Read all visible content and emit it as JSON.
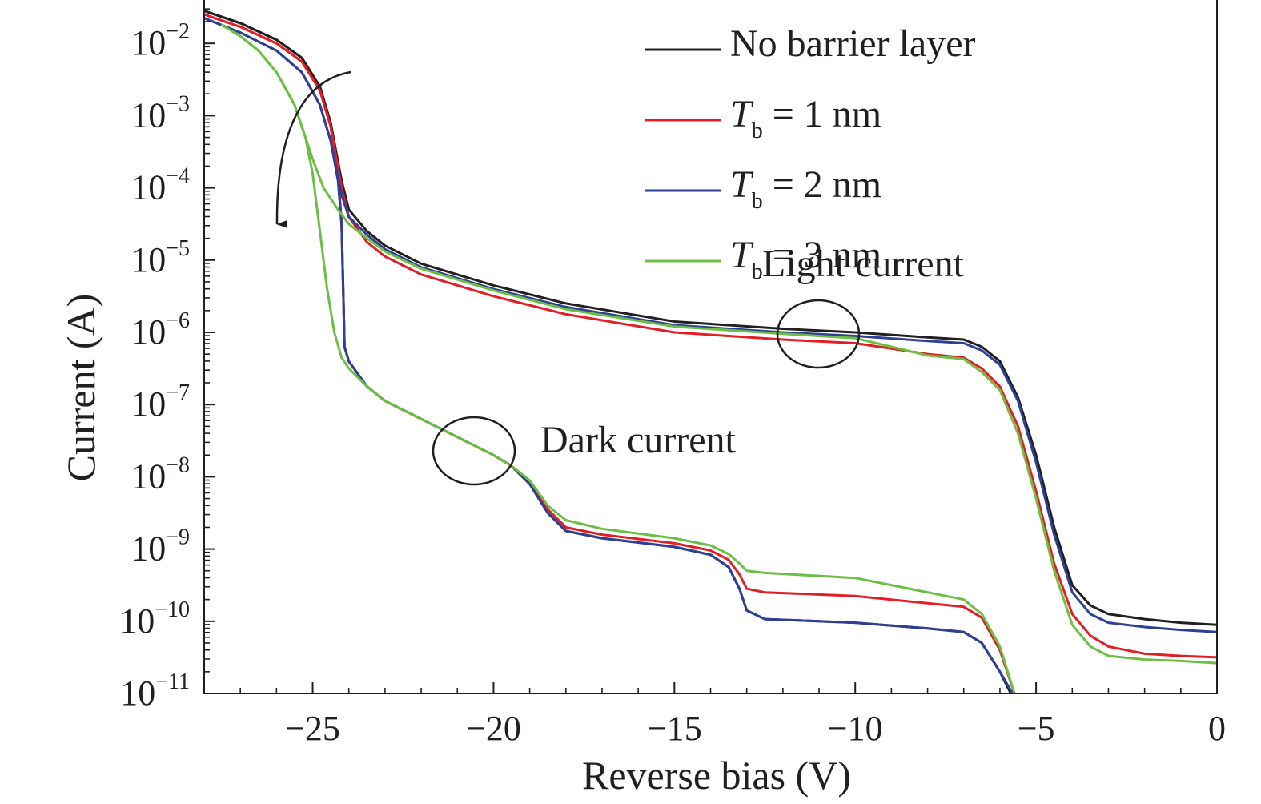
{
  "chart_data": {
    "type": "line",
    "xlabel": "Reverse bias (V)",
    "ylabel": "Current (A)",
    "xlim": [
      -28,
      0
    ],
    "ylim_exponent": [
      -11,
      -1.5
    ],
    "y_scale": "log",
    "x_ticks": [
      -25,
      -20,
      -15,
      -10,
      -5,
      0
    ],
    "x_tick_labels": [
      "−25",
      "−20",
      "−15",
      "−10",
      "−5",
      "0"
    ],
    "y_ticks": [
      {
        "base": "10",
        "exp": "−2",
        "value": -2
      },
      {
        "base": "10",
        "exp": "−3",
        "value": -3
      },
      {
        "base": "10",
        "exp": "−4",
        "value": -4
      },
      {
        "base": "10",
        "exp": "−5",
        "value": -5
      },
      {
        "base": "10",
        "exp": "−6",
        "value": -6
      },
      {
        "base": "10",
        "exp": "−7",
        "value": -7
      },
      {
        "base": "10",
        "exp": "−8",
        "value": -8
      },
      {
        "base": "10",
        "exp": "−9",
        "value": -9
      },
      {
        "base": "10",
        "exp": "−10",
        "value": -10
      },
      {
        "base": "10",
        "exp": "−11",
        "value": -11
      }
    ],
    "grid": false,
    "legend_position": "top-right",
    "legend": [
      {
        "key": "none",
        "text": "No barrier layer",
        "color": "#231f20"
      },
      {
        "key": "tb1",
        "italic": "T",
        "sub": "b",
        "rest": " = 1 nm",
        "color": "#e31e26"
      },
      {
        "key": "tb2",
        "italic": "T",
        "sub": "b",
        "rest": " = 2 nm",
        "color": "#2e3f96"
      },
      {
        "key": "tb3",
        "italic": "T",
        "sub": "b",
        "rest": " = 3 nm",
        "color": "#6cbf44"
      }
    ],
    "annotations": [
      {
        "text": "Light current",
        "x": -11,
        "y_exp": -6.0
      },
      {
        "text": "Dark current",
        "x": -20.5,
        "y_exp": -7.6
      }
    ],
    "series": [
      {
        "name": "No barrier layer",
        "color": "#231f20",
        "light": [
          [
            -28,
            -1.55
          ],
          [
            -27,
            -1.72
          ],
          [
            -26,
            -1.95
          ],
          [
            -25.3,
            -2.2
          ],
          [
            -24.8,
            -2.6
          ],
          [
            -24.5,
            -3.1
          ],
          [
            -24.2,
            -3.9
          ],
          [
            -24.0,
            -4.3
          ],
          [
            -23.5,
            -4.6
          ],
          [
            -23,
            -4.8
          ],
          [
            -22,
            -5.05
          ],
          [
            -20,
            -5.35
          ],
          [
            -18,
            -5.6
          ],
          [
            -15,
            -5.85
          ],
          [
            -12,
            -5.95
          ],
          [
            -10,
            -6.0
          ],
          [
            -8,
            -6.07
          ],
          [
            -7,
            -6.1
          ],
          [
            -6.5,
            -6.2
          ],
          [
            -6,
            -6.4
          ],
          [
            -5.5,
            -6.9
          ],
          [
            -5,
            -7.7
          ],
          [
            -4.5,
            -8.7
          ],
          [
            -4,
            -9.5
          ],
          [
            -3.5,
            -9.78
          ],
          [
            -3,
            -9.9
          ],
          [
            -2,
            -9.97
          ],
          [
            -1,
            -10.02
          ],
          [
            0,
            -10.05
          ]
        ],
        "dark": [
          [
            -28,
            -1.55
          ],
          [
            -27,
            -1.72
          ],
          [
            -26,
            -1.95
          ],
          [
            -25.3,
            -2.2
          ],
          [
            -24.8,
            -2.6
          ],
          [
            -24.5,
            -3.1
          ],
          [
            -24.3,
            -3.8
          ],
          [
            -24.2,
            -4.5
          ],
          [
            -24.15,
            -5.5
          ],
          [
            -24.12,
            -6.2
          ],
          [
            -24.0,
            -6.4
          ],
          [
            -23.5,
            -6.75
          ],
          [
            -23,
            -6.95
          ],
          [
            -22,
            -7.2
          ],
          [
            -21,
            -7.45
          ],
          [
            -20,
            -7.7
          ],
          [
            -19.5,
            -7.85
          ],
          [
            -19,
            -8.1
          ],
          [
            -18.5,
            -8.5
          ],
          [
            -18,
            -8.75
          ],
          [
            -17,
            -8.85
          ],
          [
            -15,
            -8.97
          ],
          [
            -14,
            -9.08
          ],
          [
            -13.5,
            -9.25
          ],
          [
            -13.2,
            -9.55
          ],
          [
            -13,
            -9.85
          ],
          [
            -12.5,
            -9.97
          ],
          [
            -10,
            -10.02
          ],
          [
            -8,
            -10.1
          ],
          [
            -7,
            -10.15
          ],
          [
            -6.5,
            -10.3
          ],
          [
            -6,
            -10.7
          ],
          [
            -5.7,
            -11.0
          ]
        ]
      },
      {
        "name": "Tb = 1 nm",
        "color": "#e31e26",
        "light": [
          [
            -28,
            -1.6
          ],
          [
            -27,
            -1.77
          ],
          [
            -26,
            -2.0
          ],
          [
            -25.3,
            -2.25
          ],
          [
            -24.8,
            -2.65
          ],
          [
            -24.5,
            -3.15
          ],
          [
            -24.2,
            -4.0
          ],
          [
            -24.0,
            -4.4
          ],
          [
            -23.5,
            -4.75
          ],
          [
            -23,
            -4.95
          ],
          [
            -22,
            -5.2
          ],
          [
            -20,
            -5.5
          ],
          [
            -18,
            -5.75
          ],
          [
            -15,
            -6.0
          ],
          [
            -12,
            -6.1
          ],
          [
            -10,
            -6.15
          ],
          [
            -8,
            -6.3
          ],
          [
            -7,
            -6.35
          ],
          [
            -6.5,
            -6.5
          ],
          [
            -6,
            -6.75
          ],
          [
            -5.5,
            -7.3
          ],
          [
            -5,
            -8.2
          ],
          [
            -4.5,
            -9.2
          ],
          [
            -4,
            -9.9
          ],
          [
            -3.5,
            -10.2
          ],
          [
            -3,
            -10.35
          ],
          [
            -2,
            -10.45
          ],
          [
            -1,
            -10.48
          ],
          [
            0,
            -10.5
          ]
        ],
        "dark": [
          [
            -28,
            -1.6
          ],
          [
            -27,
            -1.77
          ],
          [
            -26,
            -2.0
          ],
          [
            -25.3,
            -2.25
          ],
          [
            -24.8,
            -2.65
          ],
          [
            -24.5,
            -3.15
          ],
          [
            -24.3,
            -3.85
          ],
          [
            -24.2,
            -4.5
          ],
          [
            -24.15,
            -5.5
          ],
          [
            -24.12,
            -6.2
          ],
          [
            -24.0,
            -6.4
          ],
          [
            -23.5,
            -6.75
          ],
          [
            -23,
            -6.95
          ],
          [
            -22,
            -7.2
          ],
          [
            -21,
            -7.45
          ],
          [
            -20,
            -7.7
          ],
          [
            -19.5,
            -7.85
          ],
          [
            -19,
            -8.1
          ],
          [
            -18.5,
            -8.45
          ],
          [
            -18,
            -8.7
          ],
          [
            -17,
            -8.8
          ],
          [
            -15,
            -8.92
          ],
          [
            -14,
            -9.02
          ],
          [
            -13.5,
            -9.15
          ],
          [
            -13.2,
            -9.35
          ],
          [
            -13,
            -9.55
          ],
          [
            -12.5,
            -9.6
          ],
          [
            -10,
            -9.65
          ],
          [
            -8,
            -9.75
          ],
          [
            -7,
            -9.8
          ],
          [
            -6.5,
            -9.95
          ],
          [
            -6,
            -10.4
          ],
          [
            -5.6,
            -11.0
          ]
        ]
      },
      {
        "name": "Tb = 2 nm",
        "color": "#2e3f96",
        "light": [
          [
            -28,
            -1.65
          ],
          [
            -27,
            -1.85
          ],
          [
            -26,
            -2.1
          ],
          [
            -25.3,
            -2.4
          ],
          [
            -24.8,
            -2.85
          ],
          [
            -24.5,
            -3.35
          ],
          [
            -24.2,
            -4.1
          ],
          [
            -24.0,
            -4.4
          ],
          [
            -23.5,
            -4.65
          ],
          [
            -23,
            -4.85
          ],
          [
            -22,
            -5.1
          ],
          [
            -20,
            -5.4
          ],
          [
            -18,
            -5.65
          ],
          [
            -15,
            -5.9
          ],
          [
            -12,
            -6.0
          ],
          [
            -10,
            -6.05
          ],
          [
            -8,
            -6.12
          ],
          [
            -7,
            -6.15
          ],
          [
            -6.5,
            -6.25
          ],
          [
            -6,
            -6.45
          ],
          [
            -5.5,
            -6.95
          ],
          [
            -5,
            -7.8
          ],
          [
            -4.5,
            -8.8
          ],
          [
            -4,
            -9.6
          ],
          [
            -3.5,
            -9.9
          ],
          [
            -3,
            -10.02
          ],
          [
            -2,
            -10.08
          ],
          [
            -1,
            -10.12
          ],
          [
            0,
            -10.15
          ]
        ],
        "dark": [
          [
            -28,
            -1.65
          ],
          [
            -27,
            -1.85
          ],
          [
            -26,
            -2.1
          ],
          [
            -25.3,
            -2.4
          ],
          [
            -24.8,
            -2.85
          ],
          [
            -24.5,
            -3.35
          ],
          [
            -24.3,
            -3.9
          ],
          [
            -24.2,
            -4.5
          ],
          [
            -24.15,
            -5.5
          ],
          [
            -24.12,
            -6.2
          ],
          [
            -24.0,
            -6.4
          ],
          [
            -23.5,
            -6.75
          ],
          [
            -23,
            -6.95
          ],
          [
            -22,
            -7.2
          ],
          [
            -21,
            -7.45
          ],
          [
            -20,
            -7.7
          ],
          [
            -19.5,
            -7.85
          ],
          [
            -19,
            -8.1
          ],
          [
            -18.5,
            -8.5
          ],
          [
            -18,
            -8.75
          ],
          [
            -17,
            -8.85
          ],
          [
            -15,
            -8.97
          ],
          [
            -14,
            -9.08
          ],
          [
            -13.5,
            -9.25
          ],
          [
            -13.2,
            -9.55
          ],
          [
            -13,
            -9.85
          ],
          [
            -12.5,
            -9.97
          ],
          [
            -10,
            -10.02
          ],
          [
            -8,
            -10.1
          ],
          [
            -7,
            -10.15
          ],
          [
            -6.5,
            -10.3
          ],
          [
            -6,
            -10.7
          ],
          [
            -5.65,
            -11.0
          ]
        ]
      },
      {
        "name": "Tb = 3 nm",
        "color": "#6cbf44",
        "light": [
          [
            -27.5,
            -1.75
          ],
          [
            -27,
            -1.9
          ],
          [
            -26.5,
            -2.1
          ],
          [
            -26,
            -2.4
          ],
          [
            -25.5,
            -2.85
          ],
          [
            -25.2,
            -3.3
          ],
          [
            -25,
            -3.6
          ],
          [
            -24.7,
            -4.0
          ],
          [
            -24.3,
            -4.3
          ],
          [
            -24,
            -4.5
          ],
          [
            -23.5,
            -4.7
          ],
          [
            -23,
            -4.88
          ],
          [
            -22,
            -5.12
          ],
          [
            -20,
            -5.42
          ],
          [
            -18,
            -5.68
          ],
          [
            -15,
            -5.92
          ],
          [
            -12,
            -6.02
          ],
          [
            -10,
            -6.08
          ],
          [
            -9,
            -6.2
          ],
          [
            -8,
            -6.32
          ],
          [
            -7,
            -6.37
          ],
          [
            -6.5,
            -6.55
          ],
          [
            -6,
            -6.8
          ],
          [
            -5.5,
            -7.4
          ],
          [
            -5,
            -8.3
          ],
          [
            -4.5,
            -9.3
          ],
          [
            -4,
            -10.05
          ],
          [
            -3.5,
            -10.35
          ],
          [
            -3,
            -10.48
          ],
          [
            -2,
            -10.53
          ],
          [
            -1,
            -10.55
          ],
          [
            0,
            -10.58
          ]
        ],
        "dark": [
          [
            -27.5,
            -1.75
          ],
          [
            -27,
            -1.9
          ],
          [
            -26.5,
            -2.1
          ],
          [
            -26,
            -2.4
          ],
          [
            -25.5,
            -2.85
          ],
          [
            -25.2,
            -3.3
          ],
          [
            -25,
            -3.8
          ],
          [
            -24.8,
            -4.6
          ],
          [
            -24.6,
            -5.4
          ],
          [
            -24.4,
            -6.0
          ],
          [
            -24.2,
            -6.35
          ],
          [
            -24.0,
            -6.5
          ],
          [
            -23.5,
            -6.75
          ],
          [
            -23,
            -6.95
          ],
          [
            -22,
            -7.2
          ],
          [
            -21,
            -7.45
          ],
          [
            -20,
            -7.7
          ],
          [
            -19.5,
            -7.85
          ],
          [
            -19,
            -8.05
          ],
          [
            -18.5,
            -8.4
          ],
          [
            -18,
            -8.6
          ],
          [
            -17,
            -8.72
          ],
          [
            -15,
            -8.85
          ],
          [
            -14,
            -8.95
          ],
          [
            -13.5,
            -9.07
          ],
          [
            -13.2,
            -9.2
          ],
          [
            -13,
            -9.3
          ],
          [
            -12.5,
            -9.33
          ],
          [
            -10,
            -9.4
          ],
          [
            -8,
            -9.6
          ],
          [
            -7,
            -9.7
          ],
          [
            -6.5,
            -9.9
          ],
          [
            -6,
            -10.35
          ],
          [
            -5.6,
            -11.0
          ]
        ]
      }
    ]
  }
}
